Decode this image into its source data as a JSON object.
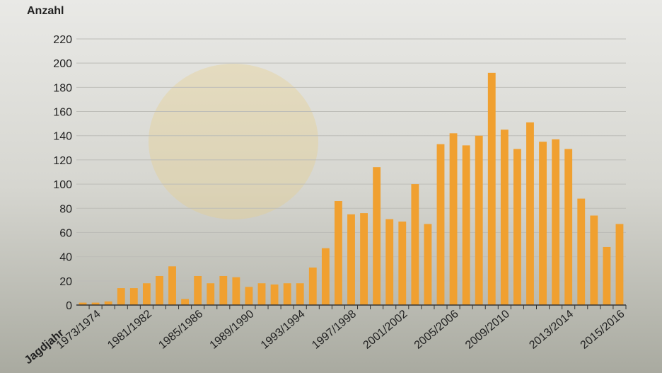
{
  "chart_data": {
    "type": "bar",
    "y_label": "Anzahl",
    "x_label": "Jagdjahr",
    "categories": [
      null,
      "1973/1974",
      null,
      null,
      null,
      "1981/1982",
      null,
      null,
      null,
      "1985/1986",
      null,
      null,
      null,
      "1989/1990",
      null,
      null,
      null,
      "1993/1994",
      null,
      null,
      null,
      "1997/1998",
      null,
      null,
      null,
      "2001/2002",
      null,
      null,
      null,
      "2005/2006",
      null,
      null,
      null,
      "2009/2010",
      null,
      null,
      null,
      null,
      "2013/2014",
      null,
      null,
      null,
      "2015/2016"
    ],
    "values": [
      2,
      2,
      3,
      14,
      14,
      18,
      24,
      32,
      5,
      24,
      18,
      24,
      23,
      15,
      18,
      17,
      18,
      18,
      31,
      47,
      86,
      75,
      76,
      114,
      71,
      69,
      100,
      67,
      133,
      142,
      132,
      140,
      192,
      145,
      129,
      151,
      135,
      137,
      129,
      88,
      74,
      48,
      67
    ],
    "color": "#f0a030",
    "ylim": [
      0,
      220
    ],
    "yticks": [
      0,
      20,
      40,
      60,
      80,
      100,
      120,
      140,
      160,
      180,
      200,
      220
    ],
    "grid": true
  }
}
